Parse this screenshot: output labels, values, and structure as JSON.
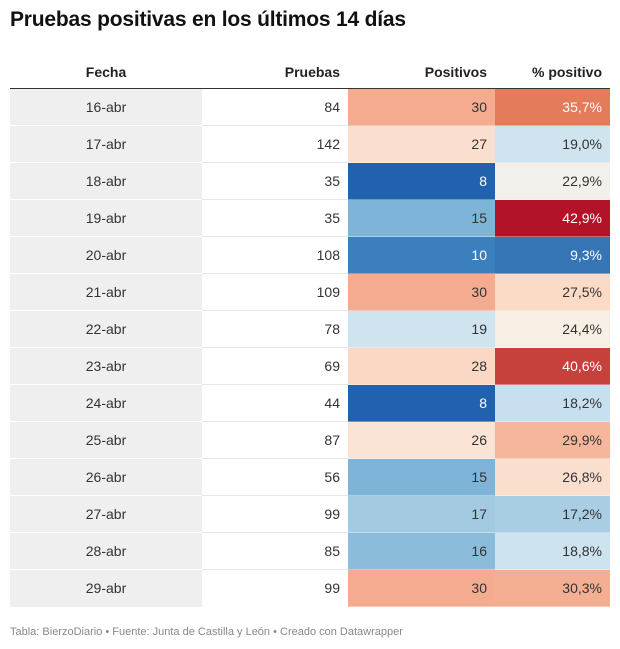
{
  "title": "Pruebas positivas en los últimos 14 días",
  "headers": {
    "fecha": "Fecha",
    "pruebas": "Pruebas",
    "positivos": "Positivos",
    "pct": "% positivo"
  },
  "rows": [
    {
      "fecha": "16-abr",
      "pruebas": "84",
      "positivos": "30",
      "pct": "35,7%",
      "pos_color": "#f4ab90",
      "pct_color": "#e47b5a",
      "pos_text": "#333333",
      "pct_text": "#ffffff"
    },
    {
      "fecha": "17-abr",
      "pruebas": "142",
      "positivos": "27",
      "pct": "19,0%",
      "pos_color": "#fbdfce",
      "pct_color": "#d0e4f0",
      "pos_text": "#333333",
      "pct_text": "#333333"
    },
    {
      "fecha": "18-abr",
      "pruebas": "35",
      "positivos": "8",
      "pct": "22,9%",
      "pos_color": "#2062ad",
      "pct_color": "#f1f0ea",
      "pos_text": "#ffffff",
      "pct_text": "#333333"
    },
    {
      "fecha": "19-abr",
      "pruebas": "35",
      "positivos": "15",
      "pct": "42,9%",
      "pos_color": "#7db4d7",
      "pct_color": "#b31329",
      "pos_text": "#333333",
      "pct_text": "#ffffff"
    },
    {
      "fecha": "20-abr",
      "pruebas": "108",
      "positivos": "10",
      "pct": "9,3%",
      "pos_color": "#3b7fbd",
      "pct_color": "#3574b5",
      "pos_text": "#ffffff",
      "pct_text": "#ffffff"
    },
    {
      "fecha": "21-abr",
      "pruebas": "109",
      "positivos": "30",
      "pct": "27,5%",
      "pos_color": "#f4ab90",
      "pct_color": "#fbdac6",
      "pos_text": "#333333",
      "pct_text": "#333333"
    },
    {
      "fecha": "22-abr",
      "pruebas": "78",
      "positivos": "19",
      "pct": "24,4%",
      "pos_color": "#d0e4f0",
      "pct_color": "#f8efe4",
      "pos_text": "#333333",
      "pct_text": "#333333"
    },
    {
      "fecha": "23-abr",
      "pruebas": "69",
      "positivos": "28",
      "pct": "40,6%",
      "pos_color": "#fbd8c4",
      "pct_color": "#c6403c",
      "pos_text": "#333333",
      "pct_text": "#ffffff"
    },
    {
      "fecha": "24-abr",
      "pruebas": "44",
      "positivos": "8",
      "pct": "18,2%",
      "pos_color": "#2062ad",
      "pct_color": "#c7dfee",
      "pos_text": "#ffffff",
      "pct_text": "#333333"
    },
    {
      "fecha": "25-abr",
      "pruebas": "87",
      "positivos": "26",
      "pct": "29,9%",
      "pos_color": "#fbe3d5",
      "pct_color": "#f6b69b",
      "pos_text": "#333333",
      "pct_text": "#333333"
    },
    {
      "fecha": "26-abr",
      "pruebas": "56",
      "positivos": "15",
      "pct": "26,8%",
      "pos_color": "#7db4d7",
      "pct_color": "#fbdfce",
      "pos_text": "#333333",
      "pct_text": "#333333"
    },
    {
      "fecha": "27-abr",
      "pruebas": "99",
      "positivos": "17",
      "pct": "17,2%",
      "pos_color": "#a3cae1",
      "pct_color": "#a9cde3",
      "pos_text": "#333333",
      "pct_text": "#333333"
    },
    {
      "fecha": "28-abr",
      "pruebas": "85",
      "positivos": "16",
      "pct": "18,8%",
      "pos_color": "#8bbcdb",
      "pct_color": "#cde3f0",
      "pos_text": "#333333",
      "pct_text": "#333333"
    },
    {
      "fecha": "29-abr",
      "pruebas": "99",
      "positivos": "30",
      "pct": "30,3%",
      "pos_color": "#f4ab90",
      "pct_color": "#f4ae92",
      "pos_text": "#333333",
      "pct_text": "#333333"
    }
  ],
  "footer": "Tabla: BierzoDiario • Fuente: Junta de Castilla y León • Creado con Datawrapper",
  "chart_data": {
    "type": "table",
    "title": "Pruebas positivas en los últimos 14 días",
    "columns": [
      "Fecha",
      "Pruebas",
      "Positivos",
      "% positivo"
    ],
    "categories": [
      "16-abr",
      "17-abr",
      "18-abr",
      "19-abr",
      "20-abr",
      "21-abr",
      "22-abr",
      "23-abr",
      "24-abr",
      "25-abr",
      "26-abr",
      "27-abr",
      "28-abr",
      "29-abr"
    ],
    "series": [
      {
        "name": "Pruebas",
        "values": [
          84,
          142,
          35,
          35,
          108,
          109,
          78,
          69,
          44,
          87,
          56,
          99,
          85,
          99
        ]
      },
      {
        "name": "Positivos",
        "values": [
          30,
          27,
          8,
          15,
          10,
          30,
          19,
          28,
          8,
          26,
          15,
          17,
          16,
          30
        ]
      },
      {
        "name": "% positivo",
        "values": [
          35.7,
          19.0,
          22.9,
          42.9,
          9.3,
          27.5,
          24.4,
          40.6,
          18.2,
          29.9,
          26.8,
          17.2,
          18.8,
          30.3
        ]
      }
    ]
  }
}
